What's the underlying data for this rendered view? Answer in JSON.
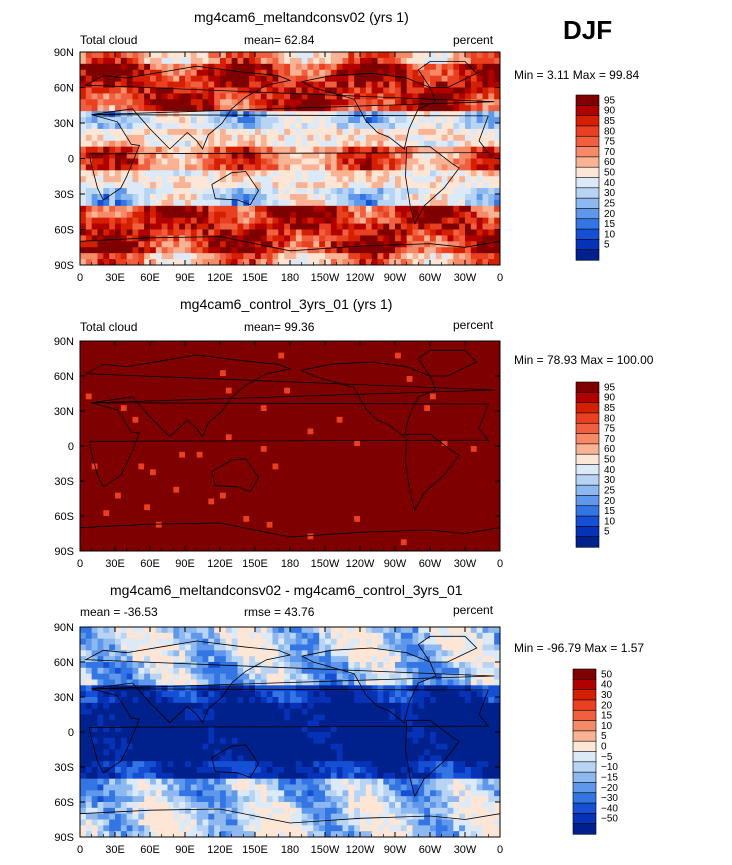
{
  "season": "DJF",
  "colorbar_scales": {
    "cloud": {
      "labels": [
        "95",
        "90",
        "85",
        "80",
        "75",
        "70",
        "60",
        "50",
        "40",
        "30",
        "25",
        "20",
        "15",
        "10",
        "5"
      ],
      "colors": [
        "#7f0000",
        "#b00000",
        "#d42000",
        "#e84020",
        "#f06040",
        "#f58a68",
        "#f9b394",
        "#fde6d6",
        "#dceaf8",
        "#b8d4f4",
        "#8db8f0",
        "#5f98ea",
        "#3375e2",
        "#1550d4",
        "#0632b8",
        "#00208c"
      ]
    },
    "diff": {
      "labels": [
        "50",
        "40",
        "30",
        "20",
        "15",
        "10",
        "5",
        "0",
        "−5",
        "−10",
        "−15",
        "−20",
        "−30",
        "−40",
        "−50"
      ],
      "colors": [
        "#7f0000",
        "#b00000",
        "#d42000",
        "#e84020",
        "#f06040",
        "#f58a68",
        "#f9b394",
        "#fde6d6",
        "#dceaf8",
        "#b8d4f4",
        "#8db8f0",
        "#5f98ea",
        "#3375e2",
        "#1550d4",
        "#0632b8",
        "#00208c"
      ]
    }
  },
  "chart_data": [
    {
      "type": "heatmap",
      "title": "mg4cam6_meltandconsv02 (yrs 1)",
      "left_label": "Total cloud",
      "center_label": "mean=  62.84",
      "right_label": "percent",
      "min_max": "Min =   3.11 Max =  99.84",
      "scale": "cloud",
      "xticks": [
        "0",
        "30E",
        "60E",
        "90E",
        "120E",
        "150E",
        "180",
        "150W",
        "120W",
        "90W",
        "60W",
        "30W",
        "0"
      ],
      "yticks": [
        "90N",
        "60N",
        "30N",
        "0",
        "30S",
        "60S",
        "90S"
      ],
      "mean": 62.84,
      "min": 3.11,
      "max": 99.84
    },
    {
      "type": "heatmap",
      "title": "mg4cam6_control_3yrs_01 (yrs 1)",
      "left_label": "Total cloud",
      "center_label": "mean=  99.36",
      "right_label": "percent",
      "min_max": "Min =  78.93 Max = 100.00",
      "scale": "cloud",
      "xticks": [
        "0",
        "30E",
        "60E",
        "90E",
        "120E",
        "150E",
        "180",
        "150W",
        "120W",
        "90W",
        "60W",
        "30W",
        "0"
      ],
      "yticks": [
        "90N",
        "60N",
        "30N",
        "0",
        "30S",
        "60S",
        "90S"
      ],
      "mean": 99.36,
      "min": 78.93,
      "max": 100.0
    },
    {
      "type": "heatmap",
      "title": "mg4cam6_meltandconsv02 - mg4cam6_control_3yrs_01",
      "left_label": "mean = -36.53",
      "center_label": "rmse =  43.76",
      "right_label": "percent",
      "min_max": "Min = -96.79 Max =   1.57",
      "scale": "diff",
      "xticks": [
        "0",
        "30E",
        "60E",
        "90E",
        "120E",
        "150E",
        "180",
        "150W",
        "120W",
        "90W",
        "60W",
        "30W",
        "0"
      ],
      "yticks": [
        "90N",
        "60N",
        "30N",
        "0",
        "30S",
        "60S",
        "90S"
      ],
      "mean": -36.53,
      "rmse": 43.76,
      "min": -96.79,
      "max": 1.57
    }
  ]
}
